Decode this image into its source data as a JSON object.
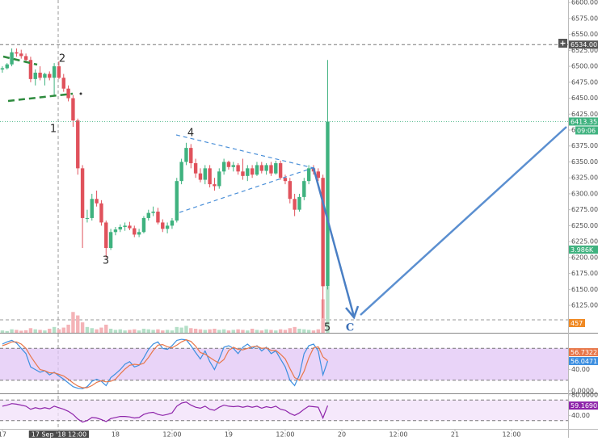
{
  "chart_data": [
    {
      "type": "candlestick",
      "x": [
        0,
        1,
        2,
        3,
        4,
        5,
        6,
        7,
        8,
        9,
        10,
        11,
        12,
        13,
        14,
        15,
        16,
        17,
        18,
        19,
        20,
        21,
        22,
        23,
        24,
        25,
        26,
        27,
        28,
        29,
        30,
        31,
        32,
        33,
        34,
        35,
        36,
        37,
        38,
        39,
        40,
        41,
        42,
        43,
        44,
        45,
        46,
        47,
        48,
        49,
        50,
        51,
        52,
        53,
        54,
        55,
        56,
        57,
        58,
        59,
        60,
        61,
        62,
        63,
        64,
        65,
        66,
        67,
        68,
        69
      ],
      "open": [
        6495,
        6497,
        6503,
        6522,
        6520,
        6516,
        6510,
        6480,
        6490,
        6482,
        6488,
        6482,
        6500,
        6482,
        6465,
        6450,
        6415,
        6340,
        6262,
        6262,
        6292,
        6285,
        6255,
        6215,
        6240,
        6244,
        6248,
        6250,
        6246,
        6236,
        6240,
        6262,
        6270,
        6272,
        6255,
        6245,
        6250,
        6258,
        6320,
        6350,
        6372,
        6348,
        6332,
        6322,
        6340,
        6315,
        6312,
        6335,
        6350,
        6342,
        6345,
        6335,
        6328,
        6340,
        6330,
        6345,
        6336,
        6345,
        6332,
        6348,
        6325,
        6320,
        6292,
        6275,
        6295,
        6320,
        6340,
        6335,
        6325,
        6155
      ],
      "high": [
        6500,
        6505,
        6528,
        6528,
        6526,
        6520,
        6515,
        6495,
        6500,
        6490,
        6492,
        6505,
        6508,
        6488,
        6470,
        6455,
        6418,
        6345,
        6275,
        6300,
        6305,
        6290,
        6258,
        6245,
        6248,
        6252,
        6255,
        6256,
        6250,
        6245,
        6265,
        6275,
        6280,
        6278,
        6260,
        6255,
        6262,
        6325,
        6355,
        6380,
        6378,
        6355,
        6340,
        6345,
        6345,
        6325,
        6340,
        6355,
        6352,
        6350,
        6348,
        6355,
        6345,
        6345,
        6350,
        6350,
        6348,
        6350,
        6352,
        6352,
        6330,
        6325,
        6300,
        6300,
        6325,
        6345,
        6345,
        6340,
        6330,
        6510
      ],
      "low": [
        6490,
        6495,
        6500,
        6515,
        6512,
        6505,
        6475,
        6470,
        6478,
        6470,
        6478,
        6455,
        6480,
        6460,
        6445,
        6405,
        6330,
        6215,
        6255,
        6258,
        6280,
        6250,
        6200,
        6212,
        6235,
        6240,
        6242,
        6243,
        6232,
        6232,
        6238,
        6258,
        6265,
        6252,
        6240,
        6238,
        6245,
        6255,
        6315,
        6345,
        6340,
        6325,
        6318,
        6315,
        6310,
        6305,
        6308,
        6330,
        6338,
        6335,
        6330,
        6322,
        6320,
        6325,
        6328,
        6332,
        6330,
        6328,
        6330,
        6322,
        6315,
        6285,
        6265,
        6272,
        6290,
        6315,
        6330,
        6320,
        6105,
        6150
      ],
      "close": [
        6497,
        6503,
        6522,
        6520,
        6516,
        6510,
        6480,
        6490,
        6482,
        6488,
        6482,
        6500,
        6482,
        6465,
        6450,
        6415,
        6340,
        6262,
        6262,
        6292,
        6285,
        6255,
        6215,
        6240,
        6244,
        6248,
        6250,
        6246,
        6236,
        6240,
        6262,
        6270,
        6272,
        6255,
        6245,
        6250,
        6258,
        6320,
        6350,
        6372,
        6348,
        6332,
        6322,
        6340,
        6315,
        6312,
        6335,
        6350,
        6342,
        6345,
        6335,
        6328,
        6340,
        6330,
        6345,
        6336,
        6345,
        6332,
        6348,
        6325,
        6320,
        6292,
        6275,
        6295,
        6320,
        6340,
        6335,
        6325,
        6155,
        6413.35
      ],
      "volume": [
        200,
        150,
        300,
        250,
        180,
        220,
        400,
        300,
        250,
        200,
        350,
        500,
        300,
        450,
        700,
        1800,
        1500,
        900,
        500,
        400,
        300,
        450,
        700,
        350,
        250,
        300,
        200,
        250,
        300,
        200,
        350,
        300,
        250,
        300,
        200,
        250,
        200,
        500,
        450,
        600,
        400,
        350,
        300,
        250,
        300,
        350,
        250,
        300,
        200,
        250,
        300,
        250,
        200,
        350,
        250,
        200,
        300,
        250,
        200,
        300,
        250,
        400,
        500,
        350,
        300,
        250,
        200,
        300,
        2900,
        3986
      ],
      "up_color": "#3fb27f",
      "down_color": "#e0525c",
      "volume_up_color": "#b4dfc7",
      "volume_down_color": "#f4b3b7",
      "xlim": [
        -0.5,
        120
      ],
      "ylim": [
        6082,
        6604
      ],
      "volume_ylim": [
        0,
        28800
      ],
      "yticks": [
        {
          "value": 6125,
          "label": "6125.00"
        },
        {
          "value": 6150,
          "label": "6150.00"
        },
        {
          "value": 6175,
          "label": "6175.00"
        },
        {
          "value": 6200,
          "label": "6200.00"
        },
        {
          "value": 6225,
          "label": "6225.00"
        },
        {
          "value": 6250,
          "label": "6250.00"
        },
        {
          "value": 6275,
          "label": "6275.00"
        },
        {
          "value": 6300,
          "label": "6300.00"
        },
        {
          "value": 6325,
          "label": "6325.00"
        },
        {
          "value": 6350,
          "label": "6350.00"
        },
        {
          "value": 6375,
          "label": "6375.00"
        },
        {
          "value": 6400,
          "label": "6400.00"
        },
        {
          "value": 6425,
          "label": "6425.00"
        },
        {
          "value": 6450,
          "label": "6450.00"
        },
        {
          "value": 6475,
          "label": "6475.00"
        },
        {
          "value": 6500,
          "label": "6500.00"
        },
        {
          "value": 6525,
          "label": "6525.00"
        },
        {
          "value": 6550,
          "label": "6550.00"
        },
        {
          "value": 6575,
          "label": "6575.00"
        },
        {
          "value": 6600,
          "label": "6600.00"
        }
      ],
      "xticks": [
        {
          "value": 0,
          "label": "17"
        },
        {
          "value": 12,
          "label": "17 Sep '18  12:00"
        },
        {
          "value": 24,
          "label": "18"
        },
        {
          "value": 36,
          "label": "12:00"
        },
        {
          "value": 48,
          "label": "19"
        },
        {
          "value": 60,
          "label": "12:00"
        },
        {
          "value": 72,
          "label": "20"
        },
        {
          "value": 84,
          "label": "12:00"
        },
        {
          "value": 96,
          "label": "21"
        },
        {
          "value": 108,
          "label": "12:00"
        }
      ],
      "crosshair_x": 12,
      "price_labels": [
        {
          "value": 6534,
          "label": "6534.00",
          "color": "#555555"
        },
        {
          "value": 6413.35,
          "label": "6413.35",
          "color": "#3fb27f"
        }
      ],
      "countdown": "09:06",
      "volume_label": "3.986K",
      "volume_ma_label": "457",
      "annotations": [
        "1",
        "2",
        "3",
        "4",
        "5",
        "C"
      ]
    },
    {
      "type": "line",
      "ylim": [
        -4.6,
        107.7
      ],
      "band": [
        20,
        80
      ],
      "band_color": "#e2c6f5",
      "yticks": [
        {
          "value": 40,
          "label": "40.00"
        },
        {
          "value": 0,
          "label": "0.0000"
        }
      ],
      "series": [
        {
          "color": "#3d8fe0",
          "values": [
            88,
            92,
            95,
            90,
            80,
            70,
            45,
            40,
            35,
            38,
            30,
            35,
            28,
            22,
            15,
            8,
            5,
            4,
            8,
            18,
            22,
            18,
            10,
            25,
            32,
            40,
            50,
            55,
            45,
            48,
            62,
            78,
            88,
            92,
            80,
            78,
            85,
            95,
            97,
            96,
            85,
            72,
            60,
            75,
            55,
            40,
            60,
            82,
            85,
            80,
            70,
            82,
            88,
            80,
            85,
            75,
            82,
            70,
            75,
            60,
            45,
            20,
            10,
            30,
            70,
            85,
            88,
            75,
            30,
            56.0471
          ]
        },
        {
          "color": "#e8774a",
          "values": [
            85,
            88,
            92,
            92,
            88,
            80,
            65,
            52,
            40,
            38,
            34,
            34,
            31,
            28,
            22,
            15,
            9,
            6,
            6,
            10,
            16,
            19,
            17,
            18,
            22,
            32,
            41,
            48,
            50,
            49,
            52,
            63,
            76,
            86,
            87,
            83,
            81,
            86,
            92,
            96,
            93,
            84,
            72,
            69,
            63,
            57,
            52,
            59,
            76,
            82,
            78,
            77,
            80,
            83,
            84,
            80,
            81,
            76,
            76,
            69,
            60,
            42,
            25,
            20,
            37,
            62,
            81,
            83,
            64,
            56.7322
          ]
        }
      ]
    },
    {
      "type": "line",
      "ylim": [
        13.8,
        83
      ],
      "band": [
        30,
        70
      ],
      "band_color": "#f1e0fa",
      "yticks": [
        {
          "value": 80,
          "label": "80.0000"
        },
        {
          "value": 40,
          "label": "40.00"
        }
      ],
      "series": [
        {
          "color": "#8e24aa",
          "last_label": "59.1690",
          "values": [
            58,
            60,
            63,
            62,
            60,
            58,
            52,
            55,
            53,
            55,
            53,
            58,
            55,
            52,
            48,
            42,
            33,
            27,
            30,
            36,
            35,
            32,
            28,
            34,
            36,
            38,
            38,
            37,
            35,
            36,
            42,
            45,
            46,
            42,
            40,
            42,
            45,
            58,
            64,
            66,
            60,
            56,
            54,
            58,
            52,
            50,
            56,
            60,
            58,
            57,
            58,
            56,
            58,
            56,
            58,
            54,
            57,
            55,
            58,
            52,
            50,
            44,
            40,
            45,
            52,
            58,
            57,
            56,
            35,
            59.169
          ]
        }
      ]
    }
  ]
}
